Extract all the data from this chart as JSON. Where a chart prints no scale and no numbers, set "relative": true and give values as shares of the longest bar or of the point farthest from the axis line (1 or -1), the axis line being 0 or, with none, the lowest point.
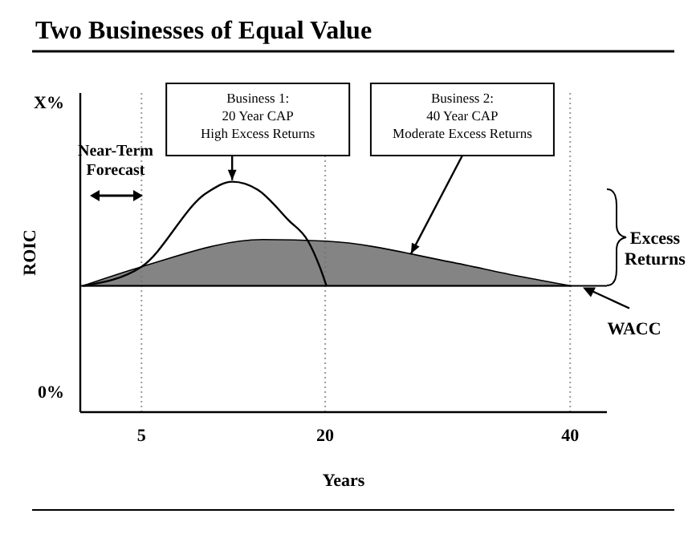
{
  "chart_data": {
    "type": "line",
    "title": "Two Businesses of Equal Value",
    "xlabel": "Years",
    "ylabel": "ROIC",
    "x": [
      0.2,
      5,
      10.3,
      12.4,
      14.5,
      17,
      18.6,
      19.6,
      20.1
    ],
    "xlim": [
      0,
      43
    ],
    "xticks": [
      5,
      20,
      40
    ],
    "relative": true,
    "grid": "x",
    "series": [
      {
        "color": "#000000",
        "values": [
          0.548,
          0.631,
          0.951,
          1,
          0.965,
          0.833,
          0.742,
          0.624,
          0.548
        ]
      },
      {
        "type": "area",
        "color": "#6e6e6e",
        "x": [
          0.2,
          5,
          14.9,
          20.1,
          30.2,
          35.9,
          40.1
        ],
        "values": [
          0.548,
          0.631,
          0.749,
          0.742,
          0.652,
          0.589,
          0.548
        ]
      }
    ],
    "ref_lines": [
      {
        "axis": "y",
        "value": 0.548,
        "label": "WACC"
      }
    ],
    "annotations": [
      {
        "text": "Business 1:\n20 Year CAP\nHigh Excess Returns",
        "x": 12.4,
        "y": 1
      },
      {
        "text": "Business 2:\n40 Year CAP\nModerate Excess Returns",
        "x": 27,
        "y": 0.68
      },
      "Near-Term\nForecast",
      "Excess\nReturns",
      "X%",
      "0%"
    ]
  }
}
